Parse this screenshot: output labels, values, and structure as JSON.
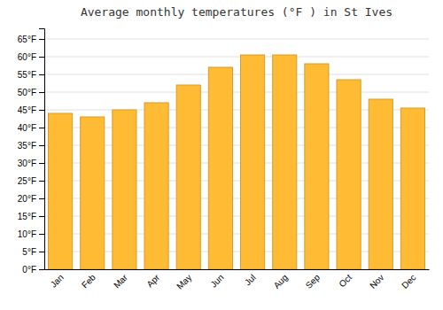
{
  "chart_data": {
    "type": "bar",
    "title": "Average monthly temperatures (°F ) in St Ives",
    "categories": [
      "Jan",
      "Feb",
      "Mar",
      "Apr",
      "May",
      "Jun",
      "Jul",
      "Aug",
      "Sep",
      "Oct",
      "Nov",
      "Dec"
    ],
    "values": [
      44,
      43,
      45,
      47,
      52,
      57,
      60.5,
      60.5,
      58,
      53.5,
      48,
      45.5
    ],
    "color": "#FFBB33",
    "ylim": [
      0,
      68
    ],
    "yticks": [
      {
        "value": 0,
        "label": "0°F"
      },
      {
        "value": 5,
        "label": "5°F"
      },
      {
        "value": 10,
        "label": "10°F"
      },
      {
        "value": 15,
        "label": "15°F"
      },
      {
        "value": 20,
        "label": "20°F"
      },
      {
        "value": 25,
        "label": "25°F"
      },
      {
        "value": 30,
        "label": "30°F"
      },
      {
        "value": 35,
        "label": "35°F"
      },
      {
        "value": 40,
        "label": "40°F"
      },
      {
        "value": 45,
        "label": "45°F"
      },
      {
        "value": 50,
        "label": "50°F"
      },
      {
        "value": 55,
        "label": "55°F"
      },
      {
        "value": 60,
        "label": "60°F"
      },
      {
        "value": 65,
        "label": "65°F"
      }
    ],
    "grid": true
  }
}
